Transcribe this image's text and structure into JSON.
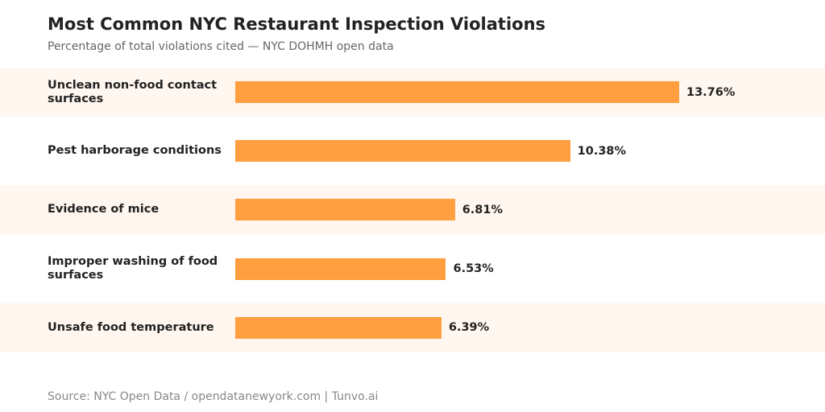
{
  "chart_data": {
    "type": "bar",
    "orientation": "horizontal",
    "title": "Most Common NYC Restaurant Inspection Violations",
    "subtitle": "Percentage of total violations cited — NYC DOHMH open data",
    "categories": [
      "Unclean non-food contact surfaces",
      "Pest harborage conditions",
      "Evidence of mice",
      "Improper washing of food surfaces",
      "Unsafe food temperature"
    ],
    "values": [
      13.76,
      10.38,
      6.81,
      6.53,
      6.39
    ],
    "value_labels": [
      "13.76%",
      "10.38%",
      "6.81%",
      "6.53%",
      "6.39%"
    ],
    "xlim": [
      0,
      13.76
    ],
    "grid": false,
    "legend": "none",
    "bar_color": "#ff9f3f",
    "band_color": "#fff6ef"
  },
  "footer": "Source: NYC Open Data / opendatanewyork.com  |  Tunvo.ai"
}
